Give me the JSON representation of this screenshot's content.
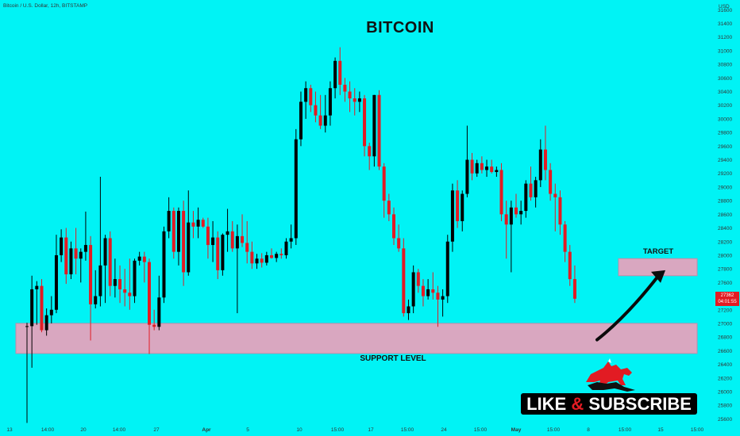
{
  "header": {
    "symbol_line": "Bitcoin / U.S. Dollar, 12h, BITSTAMP",
    "currency": "USD"
  },
  "price_badge": {
    "price": "27362",
    "countdown": "04:01:55"
  },
  "promo": {
    "text_left": "LIKE",
    "amp": "&",
    "text_right": "SUBSCRIBE"
  },
  "colors": {
    "background": "#00f3f5",
    "bear_candle": "#e21b23",
    "bull_candle": "#000000",
    "zone_fill": "#d9a7c0",
    "zone_border": "#c58aa8",
    "arrow": "#0b0b0b"
  },
  "icons": [
    "bull-logo-icon",
    "arrow-icon"
  ],
  "chart_data": {
    "type": "candlestick",
    "title": "BITCOIN",
    "y_axis": {
      "ticks": [
        25600,
        25800,
        26000,
        26200,
        26400,
        26600,
        26800,
        27000,
        27200,
        27400,
        27600,
        27800,
        28000,
        28200,
        28400,
        28600,
        28800,
        29000,
        29200,
        29400,
        29600,
        29800,
        30000,
        30200,
        30400,
        30600,
        30800,
        31000,
        31200,
        31400,
        31600
      ],
      "range": [
        25500,
        31650
      ],
      "position": "right",
      "unit": "USD"
    },
    "x_axis": {
      "ticks": [
        "13",
        "14:00",
        "20",
        "14:00",
        "27",
        "Apr",
        "5",
        "10",
        "15:00",
        "17",
        "15:00",
        "24",
        "15:00",
        "May",
        "15:00",
        "8",
        "15:00",
        "15",
        "15:00"
      ]
    },
    "candles": [
      {
        "o": 26950,
        "h": 27010,
        "l": 25540,
        "c": 26960
      },
      {
        "o": 26960,
        "h": 27700,
        "l": 26350,
        "c": 27500
      },
      {
        "o": 27500,
        "h": 27620,
        "l": 26980,
        "c": 27550
      },
      {
        "o": 27550,
        "h": 27650,
        "l": 26870,
        "c": 26900
      },
      {
        "o": 26900,
        "h": 27220,
        "l": 26820,
        "c": 27120
      },
      {
        "o": 27120,
        "h": 27400,
        "l": 27000,
        "c": 27200
      },
      {
        "o": 27200,
        "h": 28300,
        "l": 27150,
        "c": 28000
      },
      {
        "o": 28000,
        "h": 28380,
        "l": 27900,
        "c": 28260
      },
      {
        "o": 28260,
        "h": 28400,
        "l": 27580,
        "c": 27720
      },
      {
        "o": 27720,
        "h": 28200,
        "l": 27650,
        "c": 28100
      },
      {
        "o": 28100,
        "h": 28400,
        "l": 27720,
        "c": 27950
      },
      {
        "o": 27950,
        "h": 28100,
        "l": 27600,
        "c": 28050
      },
      {
        "o": 28050,
        "h": 28640,
        "l": 27920,
        "c": 28150
      },
      {
        "o": 28150,
        "h": 28280,
        "l": 26750,
        "c": 27280
      },
      {
        "o": 27280,
        "h": 27780,
        "l": 27220,
        "c": 27400
      },
      {
        "o": 27400,
        "h": 29150,
        "l": 27250,
        "c": 27850
      },
      {
        "o": 27850,
        "h": 28300,
        "l": 27300,
        "c": 28250
      },
      {
        "o": 28250,
        "h": 28350,
        "l": 27400,
        "c": 27550
      },
      {
        "o": 27550,
        "h": 27950,
        "l": 27380,
        "c": 27650
      },
      {
        "o": 27650,
        "h": 27850,
        "l": 27300,
        "c": 27500
      },
      {
        "o": 27500,
        "h": 27800,
        "l": 27250,
        "c": 27450
      },
      {
        "o": 27450,
        "h": 27950,
        "l": 27200,
        "c": 27400
      },
      {
        "o": 27400,
        "h": 27950,
        "l": 27300,
        "c": 27920
      },
      {
        "o": 27920,
        "h": 28050,
        "l": 27850,
        "c": 27980
      },
      {
        "o": 27980,
        "h": 28050,
        "l": 27600,
        "c": 27900
      },
      {
        "o": 27900,
        "h": 27950,
        "l": 26550,
        "c": 26980
      },
      {
        "o": 26980,
        "h": 27200,
        "l": 26900,
        "c": 26950
      },
      {
        "o": 26950,
        "h": 27700,
        "l": 26900,
        "c": 27380
      },
      {
        "o": 27380,
        "h": 28420,
        "l": 27300,
        "c": 28350
      },
      {
        "o": 28350,
        "h": 28850,
        "l": 28250,
        "c": 28650
      },
      {
        "o": 28650,
        "h": 28700,
        "l": 27950,
        "c": 28050
      },
      {
        "o": 28050,
        "h": 28700,
        "l": 27850,
        "c": 28650
      },
      {
        "o": 28650,
        "h": 28800,
        "l": 27550,
        "c": 27750
      },
      {
        "o": 27750,
        "h": 28950,
        "l": 27700,
        "c": 28480
      },
      {
        "o": 28480,
        "h": 28650,
        "l": 28250,
        "c": 28420
      },
      {
        "o": 28420,
        "h": 28700,
        "l": 28250,
        "c": 28520
      },
      {
        "o": 28520,
        "h": 28550,
        "l": 28400,
        "c": 28420
      },
      {
        "o": 28420,
        "h": 28550,
        "l": 27950,
        "c": 28150
      },
      {
        "o": 28150,
        "h": 28500,
        "l": 27900,
        "c": 28260
      },
      {
        "o": 28260,
        "h": 28350,
        "l": 27650,
        "c": 27780
      },
      {
        "o": 27780,
        "h": 28320,
        "l": 27700,
        "c": 28300
      },
      {
        "o": 28300,
        "h": 28680,
        "l": 28050,
        "c": 28350
      },
      {
        "o": 28350,
        "h": 28500,
        "l": 28050,
        "c": 28100
      },
      {
        "o": 28100,
        "h": 28450,
        "l": 27150,
        "c": 28280
      },
      {
        "o": 28280,
        "h": 28600,
        "l": 28120,
        "c": 28180
      },
      {
        "o": 28180,
        "h": 28500,
        "l": 27880,
        "c": 28050
      },
      {
        "o": 28050,
        "h": 28200,
        "l": 27800,
        "c": 27880
      },
      {
        "o": 27880,
        "h": 28020,
        "l": 27800,
        "c": 27950
      },
      {
        "o": 27950,
        "h": 28030,
        "l": 27820,
        "c": 27890
      },
      {
        "o": 27890,
        "h": 28050,
        "l": 27850,
        "c": 28000
      },
      {
        "o": 28000,
        "h": 28100,
        "l": 27950,
        "c": 27960
      },
      {
        "o": 27960,
        "h": 28050,
        "l": 27900,
        "c": 28020
      },
      {
        "o": 28020,
        "h": 28100,
        "l": 27950,
        "c": 28000
      },
      {
        "o": 28000,
        "h": 28250,
        "l": 27950,
        "c": 28200
      },
      {
        "o": 28200,
        "h": 28450,
        "l": 28100,
        "c": 28250
      },
      {
        "o": 28250,
        "h": 29850,
        "l": 28150,
        "c": 29700
      },
      {
        "o": 29700,
        "h": 30400,
        "l": 29600,
        "c": 30250
      },
      {
        "o": 30250,
        "h": 30550,
        "l": 30000,
        "c": 30450
      },
      {
        "o": 30450,
        "h": 30500,
        "l": 30100,
        "c": 30200
      },
      {
        "o": 30200,
        "h": 30400,
        "l": 29950,
        "c": 30050
      },
      {
        "o": 30050,
        "h": 30350,
        "l": 29850,
        "c": 29900
      },
      {
        "o": 29900,
        "h": 30350,
        "l": 29800,
        "c": 30050
      },
      {
        "o": 30050,
        "h": 30550,
        "l": 29900,
        "c": 30450
      },
      {
        "o": 30450,
        "h": 30900,
        "l": 30300,
        "c": 30850
      },
      {
        "o": 30850,
        "h": 31050,
        "l": 30350,
        "c": 30500
      },
      {
        "o": 30500,
        "h": 30600,
        "l": 30250,
        "c": 30400
      },
      {
        "o": 30400,
        "h": 30550,
        "l": 30100,
        "c": 30300
      },
      {
        "o": 30300,
        "h": 30450,
        "l": 30050,
        "c": 30250
      },
      {
        "o": 30250,
        "h": 30400,
        "l": 30100,
        "c": 30300
      },
      {
        "o": 30300,
        "h": 30350,
        "l": 29450,
        "c": 29600
      },
      {
        "o": 29600,
        "h": 29650,
        "l": 29250,
        "c": 29450
      },
      {
        "o": 29450,
        "h": 30350,
        "l": 29300,
        "c": 30350
      },
      {
        "o": 30350,
        "h": 30420,
        "l": 29250,
        "c": 29300
      },
      {
        "o": 29300,
        "h": 29350,
        "l": 28550,
        "c": 28800
      },
      {
        "o": 28800,
        "h": 28900,
        "l": 28500,
        "c": 28600
      },
      {
        "o": 28600,
        "h": 28700,
        "l": 28150,
        "c": 28250
      },
      {
        "o": 28250,
        "h": 28450,
        "l": 28050,
        "c": 28100
      },
      {
        "o": 28100,
        "h": 28250,
        "l": 27100,
        "c": 27150
      },
      {
        "o": 27150,
        "h": 27350,
        "l": 27050,
        "c": 27250
      },
      {
        "o": 27250,
        "h": 27850,
        "l": 27150,
        "c": 27750
      },
      {
        "o": 27750,
        "h": 27800,
        "l": 27450,
        "c": 27550
      },
      {
        "o": 27550,
        "h": 27650,
        "l": 27250,
        "c": 27400
      },
      {
        "o": 27400,
        "h": 27650,
        "l": 27350,
        "c": 27500
      },
      {
        "o": 27500,
        "h": 27750,
        "l": 27350,
        "c": 27450
      },
      {
        "o": 27450,
        "h": 27550,
        "l": 26950,
        "c": 27350
      },
      {
        "o": 27350,
        "h": 27500,
        "l": 27100,
        "c": 27400
      },
      {
        "o": 27400,
        "h": 28300,
        "l": 27300,
        "c": 28200
      },
      {
        "o": 28200,
        "h": 29050,
        "l": 28050,
        "c": 28950
      },
      {
        "o": 28950,
        "h": 29100,
        "l": 28400,
        "c": 28500
      },
      {
        "o": 28500,
        "h": 28950,
        "l": 28350,
        "c": 28900
      },
      {
        "o": 28900,
        "h": 29900,
        "l": 28850,
        "c": 29400
      },
      {
        "o": 29400,
        "h": 29500,
        "l": 29100,
        "c": 29200
      },
      {
        "o": 29200,
        "h": 29400,
        "l": 29150,
        "c": 29350
      },
      {
        "o": 29350,
        "h": 29450,
        "l": 29200,
        "c": 29250
      },
      {
        "o": 29250,
        "h": 29400,
        "l": 29150,
        "c": 29300
      },
      {
        "o": 29300,
        "h": 29400,
        "l": 29200,
        "c": 29220
      },
      {
        "o": 29220,
        "h": 29300,
        "l": 29150,
        "c": 29250
      },
      {
        "o": 29250,
        "h": 29350,
        "l": 28500,
        "c": 28600
      },
      {
        "o": 28600,
        "h": 28800,
        "l": 27950,
        "c": 28450
      },
      {
        "o": 28450,
        "h": 28800,
        "l": 27750,
        "c": 28700
      },
      {
        "o": 28700,
        "h": 28900,
        "l": 28550,
        "c": 28600
      },
      {
        "o": 28600,
        "h": 28800,
        "l": 28450,
        "c": 28650
      },
      {
        "o": 28650,
        "h": 29100,
        "l": 28550,
        "c": 29050
      },
      {
        "o": 29050,
        "h": 29300,
        "l": 28800,
        "c": 28850
      },
      {
        "o": 28850,
        "h": 29150,
        "l": 28700,
        "c": 29100
      },
      {
        "o": 29100,
        "h": 29700,
        "l": 29000,
        "c": 29550
      },
      {
        "o": 29550,
        "h": 29900,
        "l": 29100,
        "c": 29250
      },
      {
        "o": 29250,
        "h": 29350,
        "l": 28800,
        "c": 28900
      },
      {
        "o": 28900,
        "h": 29050,
        "l": 28350,
        "c": 28850
      },
      {
        "o": 28850,
        "h": 28950,
        "l": 28300,
        "c": 28450
      },
      {
        "o": 28450,
        "h": 28500,
        "l": 27900,
        "c": 28050
      },
      {
        "o": 28050,
        "h": 28150,
        "l": 27550,
        "c": 27650
      },
      {
        "o": 27650,
        "h": 27850,
        "l": 27300,
        "c": 27362
      }
    ],
    "zones": [
      {
        "label": "SUPPORT LEVEL",
        "from": 26560,
        "to": 27000,
        "start_candle": 0,
        "end": "right-edge"
      },
      {
        "label": "TARGET",
        "from": 27700,
        "to": 27950,
        "start_candle": "right",
        "end": "right-edge"
      }
    ],
    "annotations": [
      {
        "type": "arrow",
        "from_price": 26900,
        "to_price": 27780,
        "direction": "up-right"
      }
    ],
    "current_price": 27362
  }
}
